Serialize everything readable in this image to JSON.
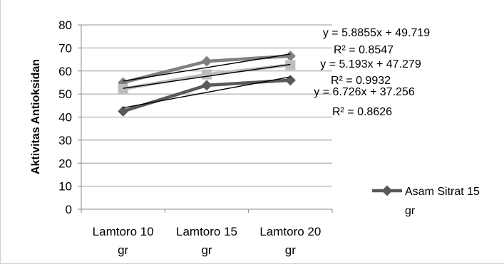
{
  "chart_data": {
    "type": "line",
    "ylabel": "Aktivitas  Antioksidan",
    "xlabel": "",
    "categories": [
      [
        "Lamtoro 10",
        "gr"
      ],
      [
        "Lamtoro 15",
        "gr"
      ],
      [
        "Lamtoro 20",
        "gr"
      ]
    ],
    "ylim": [
      0,
      80
    ],
    "yticks": [
      0,
      10,
      20,
      30,
      40,
      50,
      60,
      70,
      80
    ],
    "grid": true,
    "legend_position": "right",
    "series": [
      {
        "name": "",
        "values": [
          55.0,
          64.2,
          66.5
        ],
        "color": "#808080",
        "marker": "diamond",
        "trend": {
          "slope": 5.8855,
          "intercept": 49.719
        }
      },
      {
        "name": "",
        "values": [
          52.2,
          58.5,
          62.6
        ],
        "color": "#bdbdbd",
        "marker": "square",
        "trend": {
          "slope": 5.193,
          "intercept": 47.279
        }
      },
      {
        "name": [
          "Asam Sitrat 15",
          "gr"
        ],
        "values": [
          42.5,
          53.8,
          56.0
        ],
        "color": "#595959",
        "marker": "diamond",
        "trend": {
          "slope": 6.726,
          "intercept": 37.256
        }
      }
    ],
    "annotations": [
      [
        "y = 5.8855x + 49.719",
        "R² = 0.8547"
      ],
      [
        "y = 5.193x + 47.279",
        "R² = 0.9932"
      ],
      [
        "y = 6.726x + 37.256",
        "R² = 0.8626"
      ]
    ]
  }
}
